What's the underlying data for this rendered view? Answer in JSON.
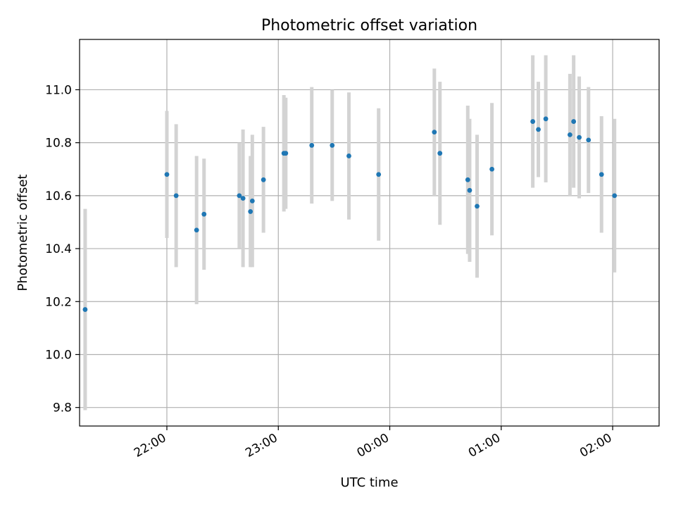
{
  "chart_data": {
    "type": "scatter",
    "title": "Photometric offset variation",
    "xlabel": "UTC time",
    "ylabel": "Photometric offset",
    "x_range": [
      "21:13",
      "02:25"
    ],
    "ylim": [
      9.73,
      11.19
    ],
    "x_ticks": [
      "22:00",
      "23:00",
      "00:00",
      "01:00",
      "02:00"
    ],
    "y_ticks": [
      "9.8",
      "10.0",
      "10.2",
      "10.4",
      "10.6",
      "10.8",
      "11.0"
    ],
    "grid": true,
    "colors": {
      "point": "#1f77b4",
      "errorbar": "#d3d3d3",
      "grid": "#b0b0b0"
    },
    "points": [
      {
        "x": "21:16",
        "y": 10.17,
        "err": 0.38
      },
      {
        "x": "21:60",
        "y": 10.68,
        "err": 0.24
      },
      {
        "x": "22:05",
        "y": 10.6,
        "err": 0.27
      },
      {
        "x": "22:16",
        "y": 10.47,
        "err": 0.28
      },
      {
        "x": "22:20",
        "y": 10.53,
        "err": 0.21
      },
      {
        "x": "22:39",
        "y": 10.6,
        "err": 0.2
      },
      {
        "x": "22:41",
        "y": 10.59,
        "err": 0.26
      },
      {
        "x": "22:45",
        "y": 10.54,
        "err": 0.21
      },
      {
        "x": "22:46",
        "y": 10.58,
        "err": 0.25
      },
      {
        "x": "22:52",
        "y": 10.66,
        "err": 0.2
      },
      {
        "x": "23:03",
        "y": 10.76,
        "err": 0.22
      },
      {
        "x": "23:04",
        "y": 10.76,
        "err": 0.21
      },
      {
        "x": "23:18",
        "y": 10.79,
        "err": 0.22
      },
      {
        "x": "23:29",
        "y": 10.79,
        "err": 0.21
      },
      {
        "x": "23:38",
        "y": 10.75,
        "err": 0.24
      },
      {
        "x": "23:54",
        "y": 10.68,
        "err": 0.25
      },
      {
        "x": "00:24",
        "y": 10.84,
        "err": 0.24
      },
      {
        "x": "00:27",
        "y": 10.76,
        "err": 0.27
      },
      {
        "x": "00:42",
        "y": 10.66,
        "err": 0.28
      },
      {
        "x": "00:43",
        "y": 10.62,
        "err": 0.27
      },
      {
        "x": "00:47",
        "y": 10.56,
        "err": 0.27
      },
      {
        "x": "00:55",
        "y": 10.7,
        "err": 0.25
      },
      {
        "x": "01:17",
        "y": 10.88,
        "err": 0.25
      },
      {
        "x": "01:20",
        "y": 10.85,
        "err": 0.18
      },
      {
        "x": "01:24",
        "y": 10.89,
        "err": 0.24
      },
      {
        "x": "01:37",
        "y": 10.83,
        "err": 0.23
      },
      {
        "x": "01:39",
        "y": 10.88,
        "err": 0.25
      },
      {
        "x": "01:42",
        "y": 10.82,
        "err": 0.23
      },
      {
        "x": "01:47",
        "y": 10.81,
        "err": 0.2
      },
      {
        "x": "01:54",
        "y": 10.68,
        "err": 0.22
      },
      {
        "x": "02:01",
        "y": 10.6,
        "err": 0.29
      }
    ]
  }
}
